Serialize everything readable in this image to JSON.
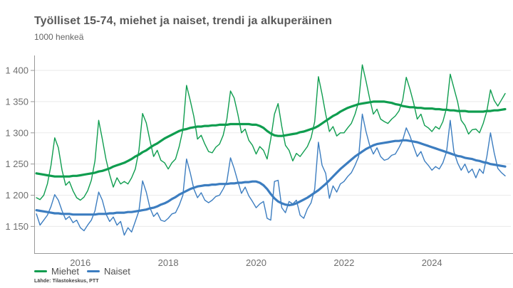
{
  "header": {
    "title": "Työlliset 15-74, miehet ja naiset, trendi ja alkuperäinen",
    "subtitle": "1000 henkeä"
  },
  "legend": {
    "items": [
      {
        "label": "Miehet",
        "color": "#0f9d4f"
      },
      {
        "label": "Naiset",
        "color": "#3c7dc0"
      }
    ]
  },
  "source": "Lähde: Tilastokeskus, PTT",
  "colors": {
    "grid": "#eaeaea",
    "axis": "#999999",
    "tick_label": "#6e6e6e"
  },
  "chart_data": {
    "type": "line",
    "title": "Työlliset 15-74, miehet ja naiset, trendi ja alkuperäinen",
    "ylabel": "1000 henkeä",
    "grid": "horizontal",
    "legend_position": "bottom-left",
    "x": {
      "start_year": 2015,
      "start_month": 1,
      "frequency": "monthly",
      "end_year": 2025,
      "end_month": 9
    },
    "x_axis": {
      "xlim": [
        2014.95,
        2025.78
      ],
      "ticks": [
        2016,
        2018,
        2020,
        2022,
        2024
      ],
      "tick_labels": [
        "2016",
        "2018",
        "2020",
        "2022",
        "2024"
      ]
    },
    "y_axis": {
      "ylim": [
        1106,
        1424
      ],
      "ticks": [
        1150,
        1200,
        1250,
        1300,
        1350,
        1400
      ],
      "tick_labels": [
        "1 150",
        "1 200",
        "1 250",
        "1 300",
        "1 350",
        "1 400"
      ]
    },
    "series": [
      {
        "name": "Miehet alkuperäinen",
        "group": "Miehet",
        "role": "original",
        "color": "#0f9d4f",
        "stroke_width": 1.4,
        "values": [
          1196,
          1193,
          1200,
          1218,
          1248,
          1292,
          1276,
          1240,
          1216,
          1222,
          1207,
          1196,
          1192,
          1197,
          1207,
          1224,
          1255,
          1320,
          1290,
          1258,
          1233,
          1213,
          1228,
          1218,
          1222,
          1218,
          1228,
          1242,
          1272,
          1331,
          1316,
          1288,
          1262,
          1272,
          1256,
          1252,
          1242,
          1252,
          1258,
          1278,
          1305,
          1376,
          1352,
          1326,
          1290,
          1296,
          1282,
          1270,
          1268,
          1277,
          1282,
          1296,
          1322,
          1367,
          1356,
          1330,
          1300,
          1306,
          1288,
          1280,
          1266,
          1278,
          1272,
          1258,
          1290,
          1330,
          1347,
          1310,
          1280,
          1272,
          1255,
          1267,
          1262,
          1270,
          1278,
          1292,
          1318,
          1390,
          1362,
          1330,
          1302,
          1310,
          1295,
          1300,
          1300,
          1308,
          1315,
          1330,
          1350,
          1409,
          1383,
          1355,
          1330,
          1338,
          1322,
          1318,
          1315,
          1322,
          1327,
          1335,
          1352,
          1389,
          1370,
          1348,
          1322,
          1330,
          1312,
          1308,
          1302,
          1310,
          1306,
          1318,
          1340,
          1394,
          1372,
          1350,
          1320,
          1312,
          1298,
          1305,
          1306,
          1300,
          1315,
          1335,
          1369,
          1352,
          1343,
          1353,
          1363
        ]
      },
      {
        "name": "Naiset alkuperäinen",
        "group": "Naiset",
        "role": "original",
        "color": "#3c7dc0",
        "stroke_width": 1.4,
        "values": [
          1170,
          1152,
          1160,
          1168,
          1182,
          1201,
          1192,
          1175,
          1161,
          1166,
          1156,
          1160,
          1148,
          1143,
          1152,
          1160,
          1175,
          1205,
          1192,
          1170,
          1158,
          1165,
          1152,
          1158,
          1136,
          1148,
          1141,
          1158,
          1175,
          1223,
          1205,
          1180,
          1166,
          1172,
          1160,
          1158,
          1163,
          1170,
          1172,
          1184,
          1200,
          1258,
          1236,
          1210,
          1196,
          1204,
          1192,
          1188,
          1192,
          1198,
          1200,
          1210,
          1222,
          1260,
          1243,
          1222,
          1203,
          1213,
          1199,
          1190,
          1180,
          1186,
          1190,
          1163,
          1160,
          1222,
          1224,
          1180,
          1172,
          1190,
          1186,
          1192,
          1168,
          1163,
          1178,
          1188,
          1210,
          1285,
          1248,
          1235,
          1195,
          1215,
          1205,
          1218,
          1222,
          1230,
          1236,
          1248,
          1262,
          1330,
          1302,
          1280,
          1266,
          1276,
          1262,
          1256,
          1258,
          1264,
          1266,
          1276,
          1288,
          1308,
          1295,
          1278,
          1262,
          1270,
          1255,
          1248,
          1240,
          1246,
          1242,
          1252,
          1270,
          1320,
          1270,
          1252,
          1240,
          1250,
          1236,
          1242,
          1228,
          1242,
          1235,
          1262,
          1300,
          1268,
          1243,
          1236,
          1231
        ]
      },
      {
        "name": "Miehet trendi",
        "group": "Miehet",
        "role": "trend",
        "color": "#0f9d4f",
        "stroke_width": 3.2,
        "values": [
          1235,
          1234,
          1233,
          1232,
          1231,
          1230,
          1230,
          1230,
          1230,
          1230,
          1231,
          1231,
          1232,
          1233,
          1234,
          1235,
          1236,
          1238,
          1239,
          1241,
          1243,
          1246,
          1248,
          1250,
          1252,
          1255,
          1258,
          1262,
          1265,
          1269,
          1272,
          1276,
          1280,
          1283,
          1287,
          1291,
          1294,
          1297,
          1300,
          1303,
          1305,
          1306,
          1308,
          1309,
          1310,
          1310,
          1311,
          1311,
          1312,
          1312,
          1313,
          1313,
          1313,
          1314,
          1314,
          1314,
          1314,
          1314,
          1314,
          1313,
          1313,
          1311,
          1308,
          1303,
          1299,
          1296,
          1295,
          1295,
          1296,
          1297,
          1298,
          1299,
          1301,
          1302,
          1304,
          1306,
          1308,
          1311,
          1315,
          1319,
          1323,
          1327,
          1330,
          1334,
          1337,
          1340,
          1342,
          1344,
          1346,
          1347,
          1348,
          1349,
          1350,
          1350,
          1350,
          1350,
          1349,
          1348,
          1346,
          1345,
          1343,
          1342,
          1341,
          1341,
          1340,
          1340,
          1339,
          1339,
          1339,
          1338,
          1338,
          1337,
          1337,
          1336,
          1336,
          1335,
          1335,
          1335,
          1334,
          1334,
          1334,
          1334,
          1334,
          1335,
          1335,
          1336,
          1336,
          1337,
          1338
        ]
      },
      {
        "name": "Naiset trendi",
        "group": "Naiset",
        "role": "trend",
        "color": "#3c7dc0",
        "stroke_width": 3.2,
        "values": [
          1176,
          1175,
          1174,
          1173,
          1172,
          1171,
          1171,
          1170,
          1170,
          1170,
          1169,
          1169,
          1169,
          1169,
          1169,
          1169,
          1169,
          1170,
          1170,
          1170,
          1171,
          1171,
          1172,
          1172,
          1172,
          1173,
          1173,
          1174,
          1175,
          1176,
          1177,
          1179,
          1180,
          1182,
          1185,
          1187,
          1190,
          1194,
          1197,
          1201,
          1204,
          1207,
          1210,
          1212,
          1214,
          1215,
          1216,
          1216,
          1217,
          1217,
          1218,
          1218,
          1218,
          1219,
          1219,
          1220,
          1220,
          1221,
          1221,
          1222,
          1222,
          1220,
          1216,
          1210,
          1202,
          1195,
          1190,
          1187,
          1185,
          1184,
          1185,
          1187,
          1190,
          1193,
          1196,
          1200,
          1204,
          1208,
          1213,
          1218,
          1224,
          1230,
          1236,
          1242,
          1247,
          1252,
          1257,
          1262,
          1266,
          1270,
          1274,
          1277,
          1280,
          1282,
          1283,
          1284,
          1285,
          1286,
          1287,
          1287,
          1288,
          1288,
          1287,
          1286,
          1285,
          1283,
          1281,
          1279,
          1277,
          1275,
          1273,
          1271,
          1269,
          1267,
          1265,
          1263,
          1262,
          1260,
          1259,
          1258,
          1256,
          1255,
          1253,
          1252,
          1250,
          1249,
          1248,
          1247,
          1246
        ]
      }
    ]
  }
}
